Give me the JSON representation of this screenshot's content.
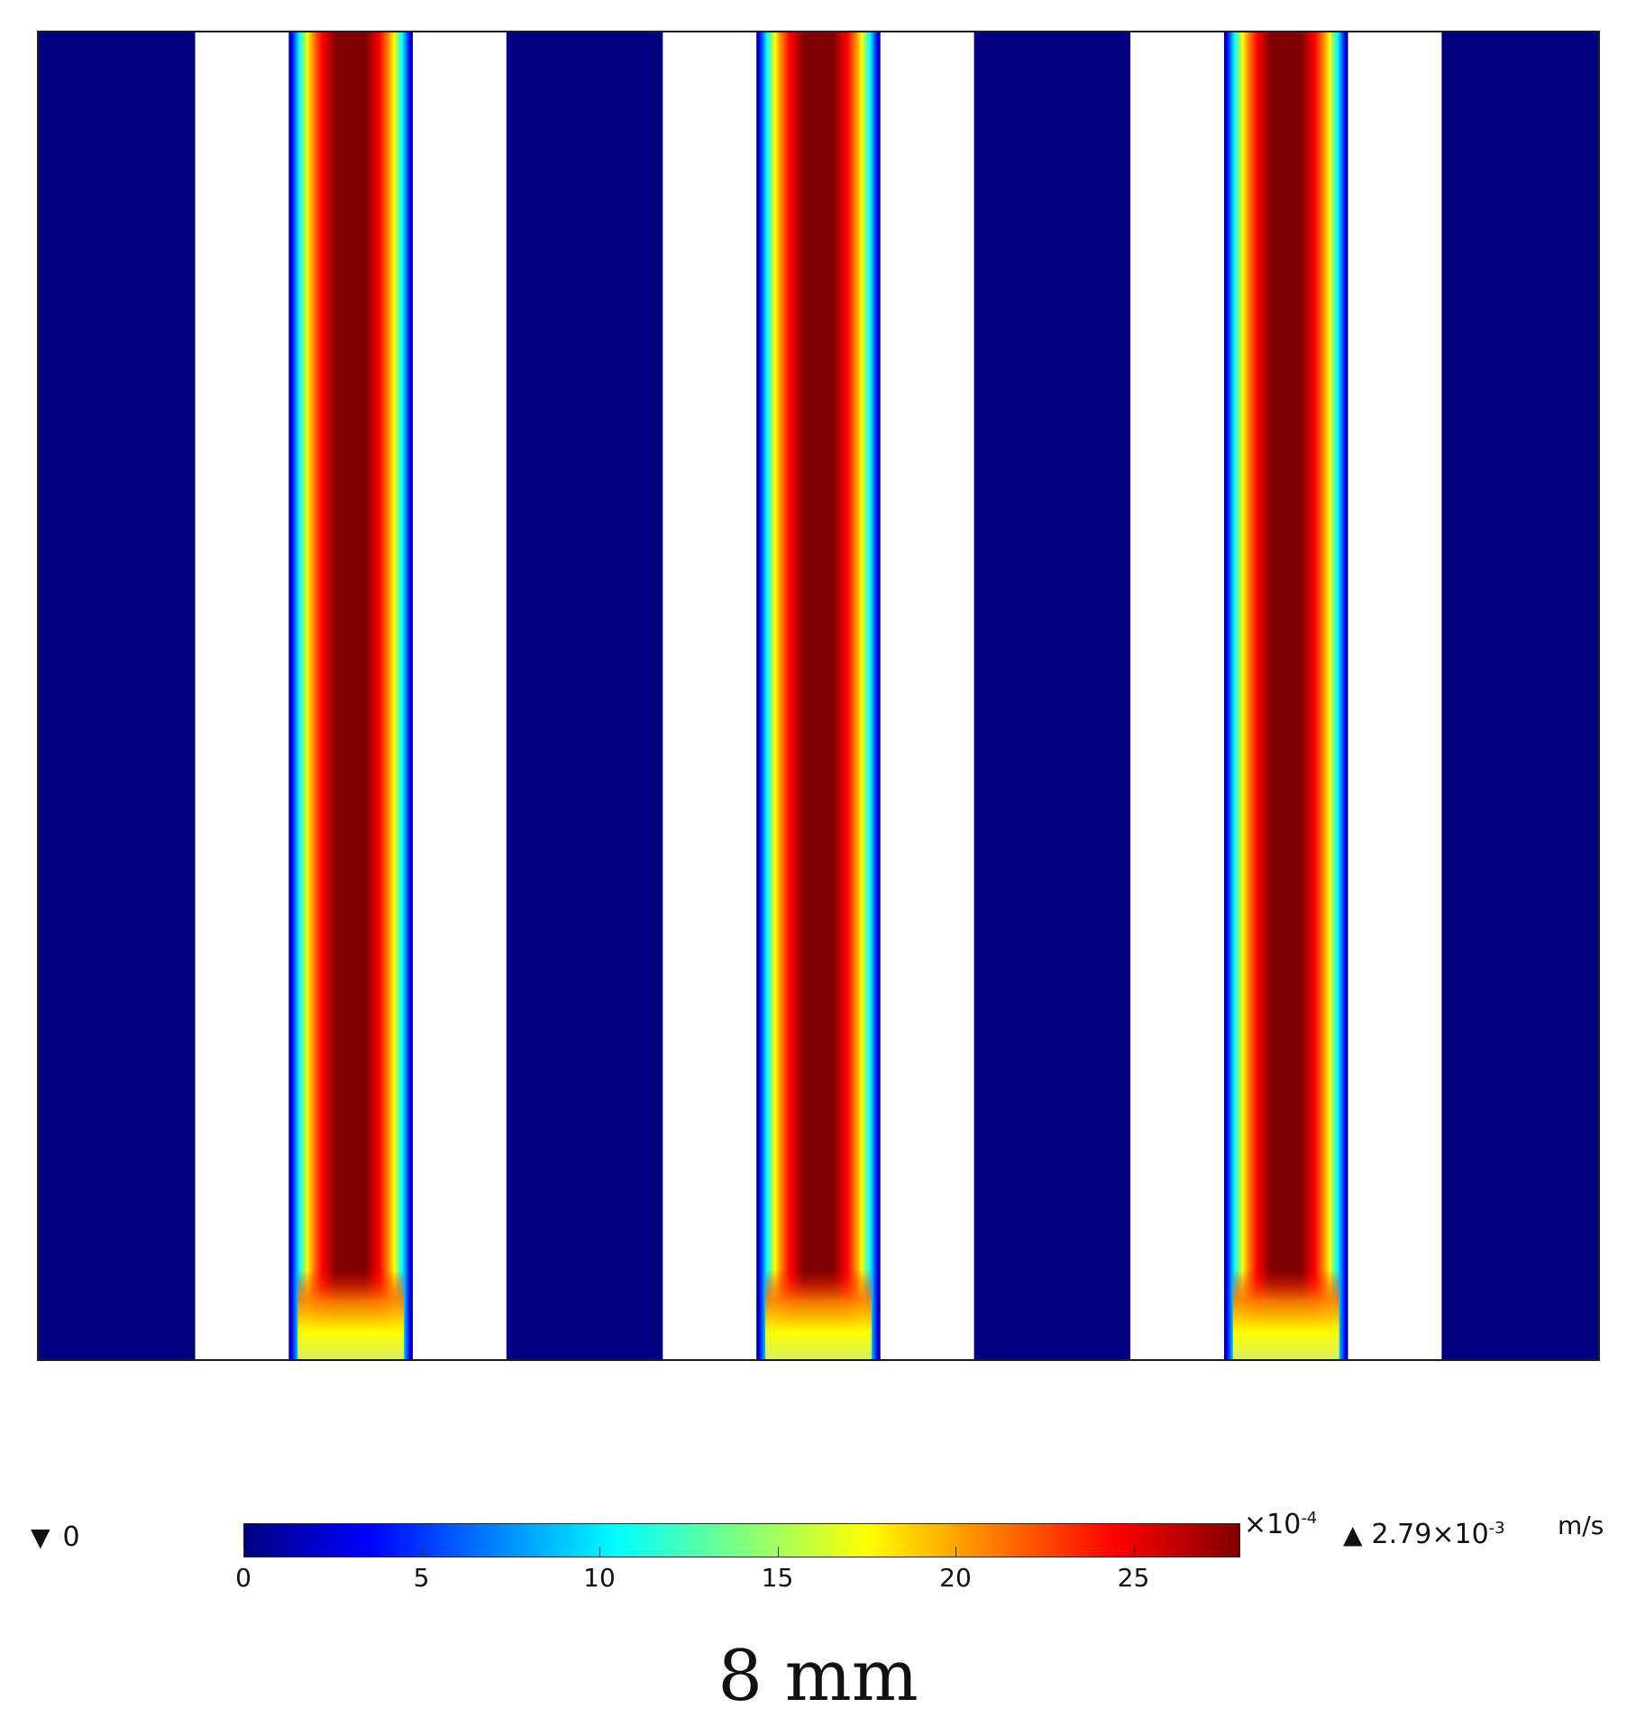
{
  "chart_data": {
    "type": "heatmap",
    "title": "",
    "quantity_unit": "m/s",
    "colormap": "jet",
    "colormap_colors": [
      "#00007f",
      "#0000ff",
      "#0080ff",
      "#00ffff",
      "#80ff80",
      "#ffff00",
      "#ff8000",
      "#ff0000",
      "#7f0000"
    ],
    "background_color": "#000080",
    "obstacle_color": "#ffffff",
    "colorbar": {
      "ticks": [
        0,
        5,
        10,
        15,
        20,
        25
      ],
      "tick_labels": [
        "0",
        "5",
        "10",
        "15",
        "20",
        "25"
      ],
      "range": [
        0,
        28
      ],
      "multiplier_base": "×10",
      "multiplier_exp": "-4",
      "min_label": "0",
      "max_label_base": "2.79×10",
      "max_label_exp": "-3",
      "min_symbol": "▼",
      "max_symbol": "▲",
      "unit": "m/s"
    },
    "max_value": 0.00279,
    "min_value": 0,
    "layout_pattern": [
      "solid",
      "white",
      "channel",
      "white",
      "solid",
      "white",
      "channel",
      "white",
      "solid",
      "white",
      "channel",
      "white",
      "solid"
    ],
    "channel_count": 3,
    "caption": "8 mm"
  }
}
